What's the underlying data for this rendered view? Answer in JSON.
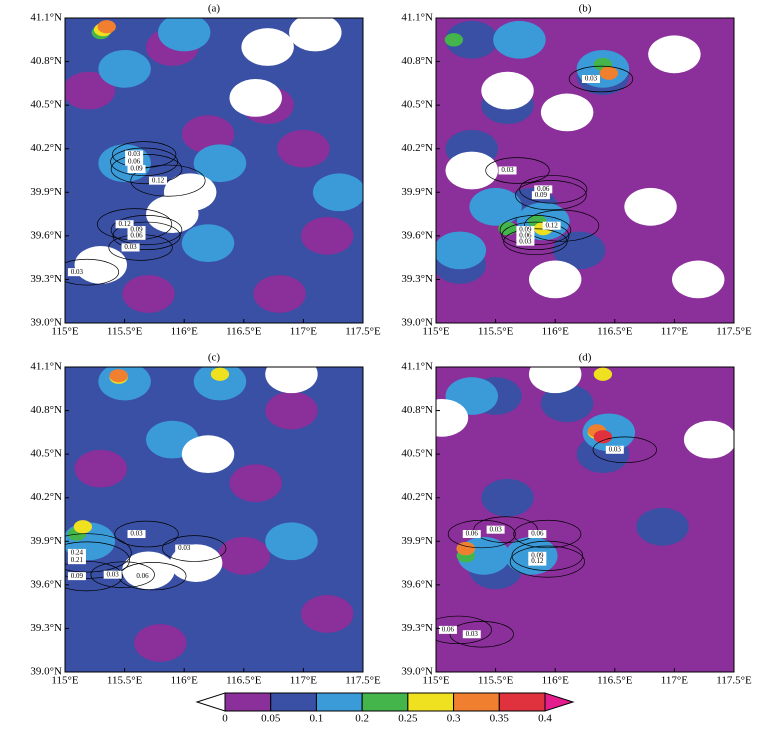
{
  "chart_data": [
    {
      "type": "contour",
      "title": "(a)",
      "xlim": [
        115,
        117.5
      ],
      "ylim": [
        39,
        41.1
      ],
      "xticks": [
        {
          "value": 115,
          "label": "115°E"
        },
        {
          "value": 115.5,
          "label": "115.5°E"
        },
        {
          "value": 116,
          "label": "116°E"
        },
        {
          "value": 116.5,
          "label": "116.5°E"
        },
        {
          "value": 117,
          "label": "117°E"
        },
        {
          "value": 117.5,
          "label": "117.5°E"
        }
      ],
      "yticks": [
        {
          "value": 39,
          "label": "39.0°N"
        },
        {
          "value": 39.3,
          "label": "39.3°N"
        },
        {
          "value": 39.6,
          "label": "39.6°N"
        },
        {
          "value": 39.9,
          "label": "39.9°N"
        },
        {
          "value": 40.2,
          "label": "40.2°N"
        },
        {
          "value": 40.5,
          "label": "40.5°N"
        },
        {
          "value": 40.8,
          "label": "40.8°N"
        },
        {
          "value": 41.1,
          "label": "41.1°N"
        }
      ],
      "base": 0.07,
      "patches": [
        {
          "lon": 115.9,
          "lat": 40.9,
          "value": 0.03
        },
        {
          "lon": 116.7,
          "lat": 40.5,
          "value": 0.03
        },
        {
          "lon": 117.2,
          "lat": 39.6,
          "value": 0.03
        },
        {
          "lon": 116.8,
          "lat": 39.2,
          "value": 0.03
        },
        {
          "lon": 115.7,
          "lat": 39.2,
          "value": 0.03
        },
        {
          "lon": 116.2,
          "lat": 40.3,
          "value": 0.03
        },
        {
          "lon": 115.2,
          "lat": 40.6,
          "value": 0.03
        },
        {
          "lon": 117.0,
          "lat": 40.2,
          "value": 0.03
        },
        {
          "lon": 115.5,
          "lat": 40.1,
          "value": 0.15
        },
        {
          "lon": 115.5,
          "lat": 40.75,
          "value": 0.15
        },
        {
          "lon": 116.2,
          "lat": 39.55,
          "value": 0.15
        },
        {
          "lon": 117.3,
          "lat": 39.9,
          "value": 0.15
        },
        {
          "lon": 116.0,
          "lat": 41.0,
          "value": 0.15
        },
        {
          "lon": 116.3,
          "lat": 40.1,
          "value": 0.15
        },
        {
          "lon": 115.9,
          "lat": 39.75,
          "value": -0.01
        },
        {
          "lon": 116.05,
          "lat": 39.9,
          "value": -0.01
        },
        {
          "lon": 116.7,
          "lat": 40.9,
          "value": -0.01
        },
        {
          "lon": 117.1,
          "lat": 41.0,
          "value": -0.01
        },
        {
          "lon": 115.3,
          "lat": 39.4,
          "value": -0.01
        },
        {
          "lon": 116.6,
          "lat": 40.55,
          "value": -0.01
        },
        {
          "lon": 115.3,
          "lat": 41.0,
          "value": 0.22
        },
        {
          "lon": 115.32,
          "lat": 41.02,
          "value": 0.27
        },
        {
          "lon": 115.35,
          "lat": 41.04,
          "value": 0.32
        }
      ],
      "contours": [
        {
          "lon": 115.58,
          "lat": 40.16,
          "value": 0.03
        },
        {
          "lon": 115.58,
          "lat": 40.11,
          "value": 0.06
        },
        {
          "lon": 115.6,
          "lat": 40.06,
          "value": 0.09
        },
        {
          "lon": 115.78,
          "lat": 39.98,
          "value": 0.12
        },
        {
          "lon": 115.5,
          "lat": 39.68,
          "value": 0.12
        },
        {
          "lon": 115.6,
          "lat": 39.64,
          "value": 0.09
        },
        {
          "lon": 115.6,
          "lat": 39.6,
          "value": 0.06
        },
        {
          "lon": 115.55,
          "lat": 39.52,
          "value": 0.03
        },
        {
          "lon": 115.1,
          "lat": 39.35,
          "value": 0.03
        }
      ]
    },
    {
      "type": "contour",
      "title": "(b)",
      "xlim": [
        115,
        117.5
      ],
      "ylim": [
        39,
        41.1
      ],
      "xticks": [
        {
          "value": 115,
          "label": "115°E"
        },
        {
          "value": 115.5,
          "label": "115.5°E"
        },
        {
          "value": 116,
          "label": "116°E"
        },
        {
          "value": 116.5,
          "label": "116.5°E"
        },
        {
          "value": 117,
          "label": "117°E"
        },
        {
          "value": 117.5,
          "label": "117.5°E"
        }
      ],
      "yticks": [
        {
          "value": 39,
          "label": "39.0°N"
        },
        {
          "value": 39.3,
          "label": "39.3°N"
        },
        {
          "value": 39.6,
          "label": "39.6°N"
        },
        {
          "value": 39.9,
          "label": "39.9°N"
        },
        {
          "value": 40.2,
          "label": "40.2°N"
        },
        {
          "value": 40.5,
          "label": "40.5°N"
        },
        {
          "value": 40.8,
          "label": "40.8°N"
        },
        {
          "value": 41.1,
          "label": "41.1°N"
        }
      ],
      "base": 0.03,
      "patches": [
        {
          "lon": 115.3,
          "lat": 40.95,
          "value": 0.07
        },
        {
          "lon": 115.6,
          "lat": 40.5,
          "value": 0.07
        },
        {
          "lon": 115.3,
          "lat": 40.2,
          "value": 0.07
        },
        {
          "lon": 115.8,
          "lat": 39.8,
          "value": 0.07
        },
        {
          "lon": 116.2,
          "lat": 39.5,
          "value": 0.07
        },
        {
          "lon": 116.4,
          "lat": 40.7,
          "value": 0.07
        },
        {
          "lon": 115.2,
          "lat": 39.4,
          "value": 0.07
        },
        {
          "lon": 115.5,
          "lat": 39.8,
          "value": 0.15
        },
        {
          "lon": 115.9,
          "lat": 39.7,
          "value": 0.15
        },
        {
          "lon": 116.4,
          "lat": 40.75,
          "value": 0.15
        },
        {
          "lon": 115.2,
          "lat": 39.5,
          "value": 0.15
        },
        {
          "lon": 115.7,
          "lat": 40.95,
          "value": 0.15
        },
        {
          "lon": 115.3,
          "lat": 40.05,
          "value": -0.01
        },
        {
          "lon": 116.1,
          "lat": 40.45,
          "value": -0.01
        },
        {
          "lon": 117.0,
          "lat": 40.85,
          "value": -0.01
        },
        {
          "lon": 116.8,
          "lat": 39.8,
          "value": -0.01
        },
        {
          "lon": 116.0,
          "lat": 39.3,
          "value": -0.01
        },
        {
          "lon": 117.2,
          "lat": 39.3,
          "value": -0.01
        },
        {
          "lon": 115.6,
          "lat": 40.6,
          "value": -0.01
        },
        {
          "lon": 115.6,
          "lat": 39.65,
          "value": 0.22
        },
        {
          "lon": 115.85,
          "lat": 39.7,
          "value": 0.22
        },
        {
          "lon": 115.15,
          "lat": 40.95,
          "value": 0.22
        },
        {
          "lon": 116.4,
          "lat": 40.78,
          "value": 0.22
        },
        {
          "lon": 115.9,
          "lat": 39.65,
          "value": 0.27
        },
        {
          "lon": 116.45,
          "lat": 40.72,
          "value": 0.32
        }
      ],
      "contours": [
        {
          "lon": 116.3,
          "lat": 40.68,
          "value": 0.03
        },
        {
          "lon": 115.6,
          "lat": 40.05,
          "value": 0.03
        },
        {
          "lon": 115.9,
          "lat": 39.92,
          "value": 0.06
        },
        {
          "lon": 115.88,
          "lat": 39.88,
          "value": 0.09
        },
        {
          "lon": 115.97,
          "lat": 39.67,
          "value": 0.12
        },
        {
          "lon": 115.75,
          "lat": 39.64,
          "value": 0.09
        },
        {
          "lon": 115.75,
          "lat": 39.6,
          "value": 0.06
        },
        {
          "lon": 115.75,
          "lat": 39.56,
          "value": 0.03
        }
      ]
    },
    {
      "type": "contour",
      "title": "(c)",
      "xlim": [
        115,
        117.5
      ],
      "ylim": [
        39,
        41.1
      ],
      "xticks": [
        {
          "value": 115,
          "label": "115°E"
        },
        {
          "value": 115.5,
          "label": "115.5°E"
        },
        {
          "value": 116,
          "label": "116°E"
        },
        {
          "value": 116.5,
          "label": "116.5°E"
        },
        {
          "value": 117,
          "label": "117°E"
        },
        {
          "value": 117.5,
          "label": "117.5°E"
        }
      ],
      "yticks": [
        {
          "value": 39,
          "label": "39.0°N"
        },
        {
          "value": 39.3,
          "label": "39.3°N"
        },
        {
          "value": 39.6,
          "label": "39.6°N"
        },
        {
          "value": 39.9,
          "label": "39.9°N"
        },
        {
          "value": 40.2,
          "label": "40.2°N"
        },
        {
          "value": 40.5,
          "label": "40.5°N"
        },
        {
          "value": 40.8,
          "label": "40.8°N"
        },
        {
          "value": 41.1,
          "label": "41.1°N"
        }
      ],
      "base": 0.07,
      "patches": [
        {
          "lon": 116.9,
          "lat": 40.8,
          "value": 0.03
        },
        {
          "lon": 117.2,
          "lat": 39.4,
          "value": 0.03
        },
        {
          "lon": 115.8,
          "lat": 39.2,
          "value": 0.03
        },
        {
          "lon": 115.3,
          "lat": 40.4,
          "value": 0.03
        },
        {
          "lon": 116.5,
          "lat": 39.8,
          "value": 0.03
        },
        {
          "lon": 116.6,
          "lat": 40.3,
          "value": 0.03
        },
        {
          "lon": 115.5,
          "lat": 41.0,
          "value": 0.15
        },
        {
          "lon": 116.3,
          "lat": 41.0,
          "value": 0.15
        },
        {
          "lon": 115.2,
          "lat": 39.9,
          "value": 0.15
        },
        {
          "lon": 116.9,
          "lat": 39.9,
          "value": 0.15
        },
        {
          "lon": 115.9,
          "lat": 40.6,
          "value": 0.15
        },
        {
          "lon": 115.7,
          "lat": 39.7,
          "value": -0.01
        },
        {
          "lon": 116.1,
          "lat": 39.75,
          "value": -0.01
        },
        {
          "lon": 116.9,
          "lat": 41.05,
          "value": -0.01
        },
        {
          "lon": 116.2,
          "lat": 40.5,
          "value": -0.01
        },
        {
          "lon": 115.1,
          "lat": 39.95,
          "value": 0.22
        },
        {
          "lon": 115.15,
          "lat": 40.0,
          "value": 0.27
        },
        {
          "lon": 115.45,
          "lat": 41.03,
          "value": 0.27
        },
        {
          "lon": 116.3,
          "lat": 41.05,
          "value": 0.27
        },
        {
          "lon": 115.45,
          "lat": 41.04,
          "value": 0.32
        }
      ],
      "contours": [
        {
          "lon": 115.6,
          "lat": 39.95,
          "value": 0.03
        },
        {
          "lon": 116.0,
          "lat": 39.85,
          "value": 0.03
        },
        {
          "lon": 115.1,
          "lat": 39.82,
          "value": 0.24
        },
        {
          "lon": 115.1,
          "lat": 39.77,
          "value": 0.21
        },
        {
          "lon": 115.1,
          "lat": 39.66,
          "value": 0.09
        },
        {
          "lon": 115.4,
          "lat": 39.67,
          "value": 0.03
        },
        {
          "lon": 115.65,
          "lat": 39.66,
          "value": 0.06
        }
      ]
    },
    {
      "type": "contour",
      "title": "(d)",
      "xlim": [
        115,
        117.5
      ],
      "ylim": [
        39,
        41.1
      ],
      "xticks": [
        {
          "value": 115,
          "label": "115°E"
        },
        {
          "value": 115.5,
          "label": "115.5°E"
        },
        {
          "value": 116,
          "label": "116°E"
        },
        {
          "value": 116.5,
          "label": "116.5°E"
        },
        {
          "value": 117,
          "label": "117°E"
        },
        {
          "value": 117.5,
          "label": "117.5°E"
        }
      ],
      "yticks": [
        {
          "value": 39,
          "label": "39.0°N"
        },
        {
          "value": 39.3,
          "label": "39.3°N"
        },
        {
          "value": 39.6,
          "label": "39.6°N"
        },
        {
          "value": 39.9,
          "label": "39.9°N"
        },
        {
          "value": 40.2,
          "label": "40.2°N"
        },
        {
          "value": 40.5,
          "label": "40.5°N"
        },
        {
          "value": 40.8,
          "label": "40.8°N"
        },
        {
          "value": 41.1,
          "label": "41.1°N"
        }
      ],
      "base": 0.03,
      "patches": [
        {
          "lon": 115.5,
          "lat": 40.9,
          "value": 0.07
        },
        {
          "lon": 116.1,
          "lat": 40.85,
          "value": 0.07
        },
        {
          "lon": 115.6,
          "lat": 40.2,
          "value": 0.07
        },
        {
          "lon": 115.5,
          "lat": 39.7,
          "value": 0.07
        },
        {
          "lon": 116.4,
          "lat": 40.5,
          "value": 0.07
        },
        {
          "lon": 116.9,
          "lat": 40.0,
          "value": 0.07
        },
        {
          "lon": 115.4,
          "lat": 39.8,
          "value": 0.15
        },
        {
          "lon": 115.8,
          "lat": 39.8,
          "value": 0.15
        },
        {
          "lon": 116.45,
          "lat": 40.65,
          "value": 0.15
        },
        {
          "lon": 115.3,
          "lat": 40.9,
          "value": 0.15
        },
        {
          "lon": 115.05,
          "lat": 40.75,
          "value": -0.01
        },
        {
          "lon": 116.0,
          "lat": 41.05,
          "value": -0.01
        },
        {
          "lon": 117.3,
          "lat": 40.6,
          "value": -0.01
        },
        {
          "lon": 115.25,
          "lat": 39.8,
          "value": 0.22
        },
        {
          "lon": 115.25,
          "lat": 39.85,
          "value": 0.27
        },
        {
          "lon": 116.35,
          "lat": 40.65,
          "value": 0.27
        },
        {
          "lon": 116.4,
          "lat": 41.05,
          "value": 0.27
        },
        {
          "lon": 115.25,
          "lat": 39.85,
          "value": 0.32
        },
        {
          "lon": 116.35,
          "lat": 40.66,
          "value": 0.32
        },
        {
          "lon": 116.4,
          "lat": 40.62,
          "value": 0.37
        }
      ],
      "contours": [
        {
          "lon": 116.5,
          "lat": 40.53,
          "value": 0.03
        },
        {
          "lon": 115.5,
          "lat": 39.98,
          "value": 0.03
        },
        {
          "lon": 115.3,
          "lat": 39.95,
          "value": 0.06
        },
        {
          "lon": 115.85,
          "lat": 39.95,
          "value": 0.06
        },
        {
          "lon": 115.85,
          "lat": 39.8,
          "value": 0.09
        },
        {
          "lon": 115.85,
          "lat": 39.76,
          "value": 0.12
        },
        {
          "lon": 115.1,
          "lat": 39.29,
          "value": 0.06
        },
        {
          "lon": 115.3,
          "lat": 39.26,
          "value": 0.03
        }
      ]
    }
  ],
  "colorbar": {
    "levels": [
      0,
      0.05,
      0.1,
      0.2,
      0.25,
      0.3,
      0.35,
      0.4
    ],
    "colors": [
      "#ffffff",
      "#8b2f9a",
      "#3a50a5",
      "#3a9bd8",
      "#43b54b",
      "#efe11f",
      "#f07f2f",
      "#e0313f",
      "#e31d8e"
    ]
  }
}
